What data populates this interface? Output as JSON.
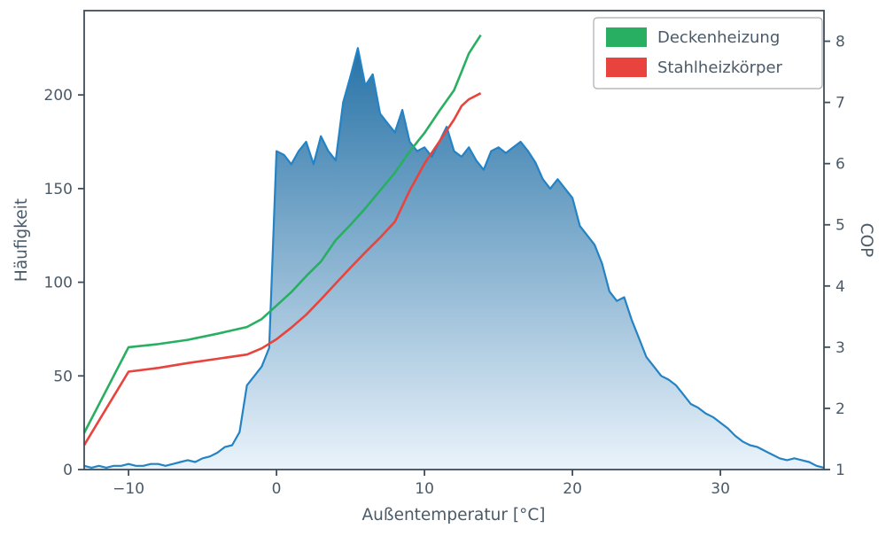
{
  "figure": {
    "background": "#ffffff"
  },
  "chart_data": {
    "type": "area+line combo (histogram with twin-axis COP curves)",
    "title": "",
    "xlabel": "Außentemperatur [°C]",
    "ylabel_left": "Häufigkeit",
    "ylabel_right": "COP",
    "xlim": [
      -13,
      37
    ],
    "ylim_left": [
      0,
      245
    ],
    "ylim_right": [
      1,
      8.5
    ],
    "grid": "off",
    "xticks": {
      "values": [
        -10,
        0,
        10,
        20,
        30
      ],
      "labels": [
        "−10",
        "0",
        "10",
        "20",
        "30"
      ]
    },
    "yticks_left": {
      "values": [
        0,
        50,
        100,
        150,
        200
      ],
      "labels": [
        "0",
        "50",
        "100",
        "150",
        "200"
      ]
    },
    "yticks_right": {
      "values": [
        1,
        2,
        3,
        4,
        5,
        6,
        7,
        8
      ],
      "labels": [
        "1",
        "2",
        "3",
        "4",
        "5",
        "6",
        "7",
        "8"
      ]
    },
    "histogram": {
      "name": "Häufigkeit",
      "axis": "left",
      "type": "area",
      "x_start": -13,
      "x_step": 0.5,
      "values": [
        2,
        1,
        2,
        1,
        2,
        2,
        3,
        2,
        2,
        3,
        3,
        2,
        3,
        4,
        5,
        4,
        6,
        7,
        9,
        12,
        13,
        20,
        45,
        50,
        55,
        65,
        170,
        168,
        163,
        170,
        175,
        163,
        178,
        170,
        165,
        196,
        210,
        225,
        205,
        211,
        190,
        185,
        180,
        192,
        175,
        170,
        172,
        167,
        175,
        183,
        170,
        167,
        172,
        165,
        160,
        170,
        172,
        169,
        172,
        175,
        170,
        164,
        155,
        150,
        155,
        150,
        145,
        130,
        125,
        120,
        110,
        95,
        90,
        92,
        80,
        70,
        60,
        55,
        50,
        48,
        45,
        40,
        35,
        33,
        30,
        28,
        25,
        22,
        18,
        15,
        13,
        12,
        10,
        8,
        6,
        5,
        6,
        5,
        4,
        2,
        1
      ],
      "line_color": "#2383c4",
      "fill_gradient": [
        "#16679f",
        "#eaf3fb"
      ]
    },
    "series": [
      {
        "name": "Deckenheizung",
        "axis": "right",
        "color": "#29af62",
        "x": [
          -13,
          -10,
          -8,
          -6,
          -4,
          -2,
          -1,
          0,
          1,
          2,
          3,
          4,
          5,
          6,
          7,
          8,
          9,
          10,
          11,
          12,
          12.5,
          13,
          13.8
        ],
        "values": [
          1.6,
          3.0,
          3.05,
          3.12,
          3.22,
          3.33,
          3.46,
          3.68,
          3.9,
          4.16,
          4.4,
          4.75,
          5.0,
          5.27,
          5.56,
          5.85,
          6.2,
          6.5,
          6.86,
          7.2,
          7.5,
          7.8,
          8.1
        ]
      },
      {
        "name": "Stahlheizkörper",
        "axis": "right",
        "color": "#e8433c",
        "x": [
          -13,
          -10,
          -8,
          -6,
          -4,
          -2,
          -1,
          0,
          1,
          2,
          3,
          4,
          5,
          6,
          7,
          8,
          9,
          10,
          11,
          12,
          12.5,
          13,
          13.8
        ],
        "values": [
          1.4,
          2.6,
          2.66,
          2.74,
          2.81,
          2.88,
          2.98,
          3.13,
          3.32,
          3.53,
          3.78,
          4.04,
          4.3,
          4.55,
          4.79,
          5.05,
          5.56,
          6.0,
          6.36,
          6.72,
          6.94,
          7.05,
          7.15
        ]
      }
    ],
    "legend": {
      "position": "upper right"
    },
    "styles": {
      "text_color": "#4a5a68",
      "spine_color": "#3f4d59"
    }
  }
}
